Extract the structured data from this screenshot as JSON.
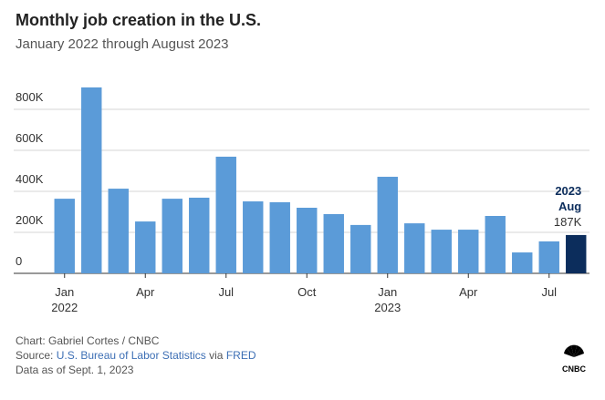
{
  "chart_data": {
    "type": "bar",
    "title": "Monthly job creation in the U.S.",
    "subtitle": "January 2022 through August 2023",
    "categories": [
      "Jan\n2022",
      null,
      null,
      "Apr",
      null,
      null,
      "Jul",
      null,
      null,
      "Oct",
      null,
      null,
      "Jan\n2023",
      null,
      null,
      "Apr",
      null,
      null,
      "Jul",
      null
    ],
    "values": [
      364000,
      907000,
      413000,
      253000,
      364000,
      369000,
      569000,
      351000,
      347000,
      320000,
      289000,
      236000,
      471000,
      244000,
      213000,
      213000,
      280000,
      102000,
      156000,
      187000
    ],
    "color": "#5b9bd8",
    "highlight_color": "#0c2d5c",
    "annotation": "2023\nAug",
    "annotated_value_label": "187K",
    "ylim": [
      0,
      920000
    ],
    "yticks": [
      0,
      {
        "value": 200000,
        "label": "200K"
      },
      {
        "value": 400000,
        "label": "400K"
      },
      {
        "value": 600000,
        "label": "600K"
      },
      {
        "value": 800000,
        "label": "800K"
      }
    ],
    "grid": true
  },
  "footer": {
    "credit": "Chart: Gabriel Cortes / CNBC",
    "source_label": "Source:",
    "source_link": "U.S. Bureau of Labor Statistics",
    "via": "via",
    "via_link": "FRED",
    "note": "Data as of Sept. 1, 2023",
    "logo": "CNBC"
  }
}
